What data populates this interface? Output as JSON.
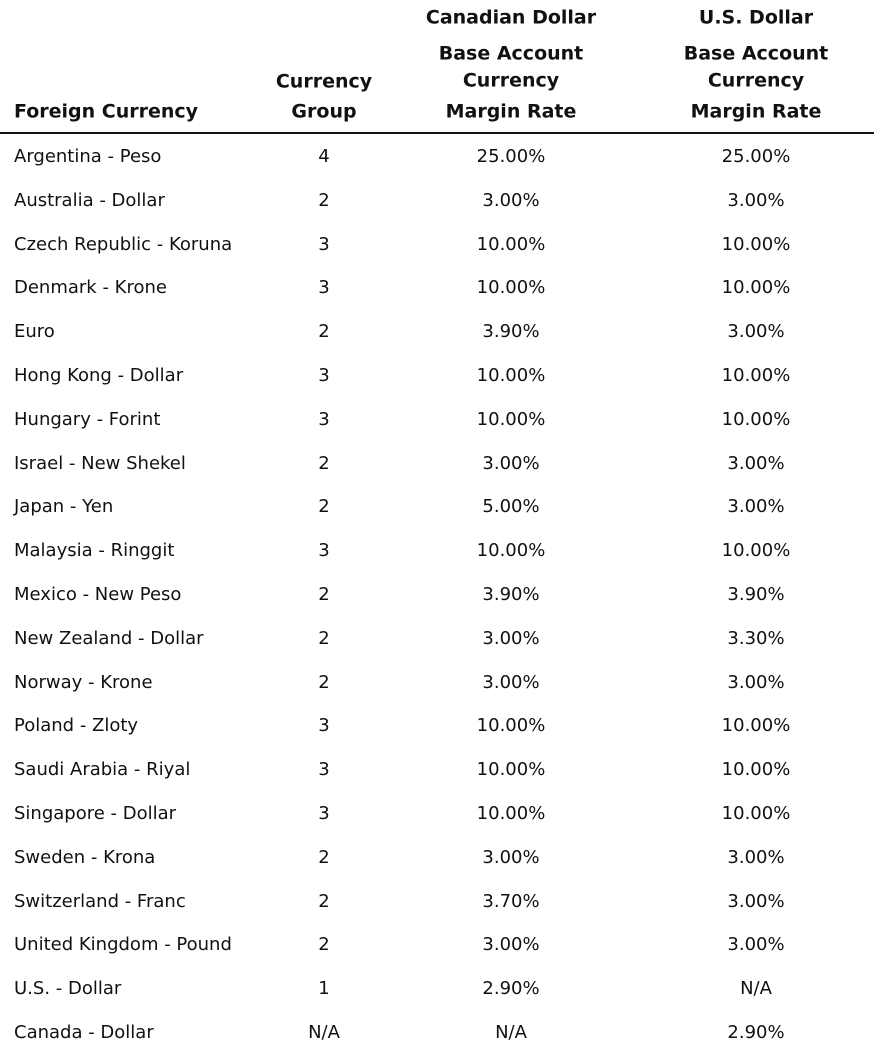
{
  "header": {
    "groups": [
      "Canadian Dollar",
      "U.S. Dollar"
    ],
    "foreign_currency": "Foreign Currency",
    "currency_group": [
      "Currency",
      "Group"
    ],
    "margin_rate": [
      "Base Account",
      "Currency",
      "Margin Rate"
    ]
  },
  "table": {
    "rows": [
      [
        "Argentina - Peso",
        "4",
        "25.00%",
        "25.00%"
      ],
      [
        "Australia - Dollar",
        "2",
        "3.00%",
        "3.00%"
      ],
      [
        "Czech Republic - Koruna",
        "3",
        "10.00%",
        "10.00%"
      ],
      [
        "Denmark - Krone",
        "3",
        "10.00%",
        "10.00%"
      ],
      [
        "Euro",
        "2",
        "3.90%",
        "3.00%"
      ],
      [
        "Hong Kong - Dollar",
        "3",
        "10.00%",
        "10.00%"
      ],
      [
        "Hungary - Forint",
        "3",
        "10.00%",
        "10.00%"
      ],
      [
        "Israel - New Shekel",
        "2",
        "3.00%",
        "3.00%"
      ],
      [
        "Japan - Yen",
        "2",
        "5.00%",
        "3.00%"
      ],
      [
        "Malaysia - Ringgit",
        "3",
        "10.00%",
        "10.00%"
      ],
      [
        "Mexico - New Peso",
        "2",
        "3.90%",
        "3.90%"
      ],
      [
        "New Zealand - Dollar",
        "2",
        "3.00%",
        "3.30%"
      ],
      [
        "Norway - Krone",
        "2",
        "3.00%",
        "3.00%"
      ],
      [
        "Poland - Zloty",
        "3",
        "10.00%",
        "10.00%"
      ],
      [
        "Saudi Arabia - Riyal",
        "3",
        "10.00%",
        "10.00%"
      ],
      [
        "Singapore - Dollar",
        "3",
        "10.00%",
        "10.00%"
      ],
      [
        "Sweden - Krona",
        "2",
        "3.00%",
        "3.00%"
      ],
      [
        "Switzerland - Franc",
        "2",
        "3.70%",
        "3.00%"
      ],
      [
        "United Kingdom - Pound",
        "2",
        "3.00%",
        "3.00%"
      ],
      [
        "U.S. - Dollar",
        "1",
        "2.90%",
        "N/A"
      ],
      [
        "Canada - Dollar",
        "N/A",
        "N/A",
        "2.90%"
      ]
    ]
  }
}
